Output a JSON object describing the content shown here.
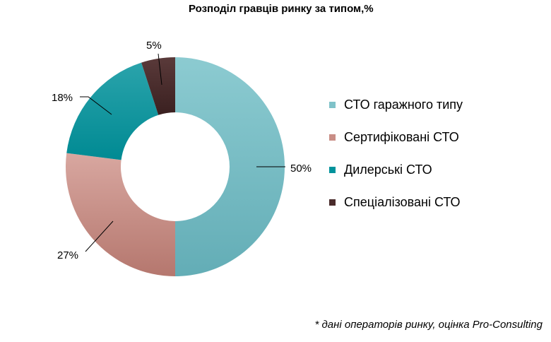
{
  "chart_data": {
    "type": "pie",
    "donut": true,
    "title": "Розподіл гравців ринку за типом,%",
    "categories": [
      "СТО гаражного типу",
      "Сертифіковані СТО",
      "Дилерські СТО",
      "Спеціалізовані СТО"
    ],
    "values": [
      50,
      27,
      18,
      5
    ],
    "labels": [
      "50%",
      "27%",
      "18%",
      "5%"
    ],
    "colors": [
      "#7fc2c9",
      "#c98e86",
      "#00939c",
      "#4a2b2b"
    ],
    "legend_position": "right"
  },
  "footnote": "* дані операторів ринку, оцінка Pro-Consulting"
}
